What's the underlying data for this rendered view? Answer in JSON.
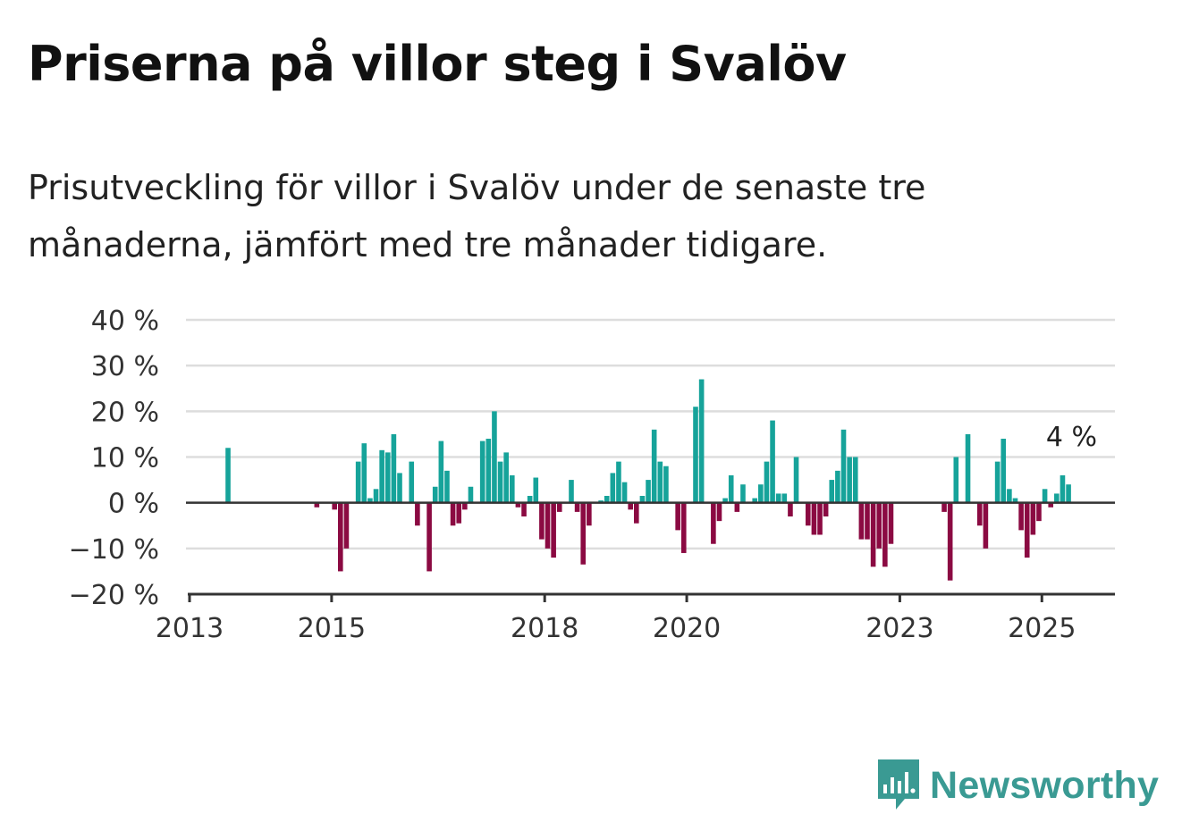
{
  "title": "Priserna på villor steg i Svalöv",
  "subtitle": "Prisutveckling för villor i Svalöv under de senaste tre månaderna, jämfört med tre månader tidigare.",
  "brand": {
    "name": "Newsworthy",
    "color": "#3a9a93"
  },
  "colors": {
    "positive": "#16a39a",
    "negative": "#8b0a42",
    "grid": "#dddddd",
    "axis": "#333333"
  },
  "chart_data": {
    "type": "bar",
    "title": "",
    "xlabel": "",
    "ylabel": "",
    "ylim": [
      -20,
      40
    ],
    "y_ticks": [
      {
        "value": 40,
        "label": "40 %"
      },
      {
        "value": 30,
        "label": "30 %"
      },
      {
        "value": 20,
        "label": "20 %"
      },
      {
        "value": 10,
        "label": "10 %"
      },
      {
        "value": 0,
        "label": "0 %"
      },
      {
        "value": -10,
        "label": "−10 %"
      },
      {
        "value": -20,
        "label": "−20 %"
      }
    ],
    "x_range": [
      "2013-01",
      "2026-01"
    ],
    "x_ticks": [
      {
        "date": "2013-01",
        "label": "2013"
      },
      {
        "date": "2015-01",
        "label": "2015"
      },
      {
        "date": "2018-01",
        "label": "2018"
      },
      {
        "date": "2020-01",
        "label": "2020"
      },
      {
        "date": "2023-01",
        "label": "2023"
      },
      {
        "date": "2025-01",
        "label": "2025"
      }
    ],
    "grid": true,
    "legend": "none",
    "annotation": {
      "date": "2025-05",
      "label": "4 %"
    },
    "series": [
      {
        "points": [
          {
            "date": "2013-07",
            "value": 12
          },
          {
            "date": "2014-10",
            "value": -1
          },
          {
            "date": "2015-01",
            "value": -1.5
          },
          {
            "date": "2015-02",
            "value": -15
          },
          {
            "date": "2015-03",
            "value": -10
          },
          {
            "date": "2015-05",
            "value": 9
          },
          {
            "date": "2015-06",
            "value": 13
          },
          {
            "date": "2015-07",
            "value": 1
          },
          {
            "date": "2015-08",
            "value": 3
          },
          {
            "date": "2015-09",
            "value": 11.5
          },
          {
            "date": "2015-10",
            "value": 11
          },
          {
            "date": "2015-11",
            "value": 15
          },
          {
            "date": "2015-12",
            "value": 6.5
          },
          {
            "date": "2016-02",
            "value": 9
          },
          {
            "date": "2016-03",
            "value": -5
          },
          {
            "date": "2016-05",
            "value": -15
          },
          {
            "date": "2016-06",
            "value": 3.5
          },
          {
            "date": "2016-07",
            "value": 13.5
          },
          {
            "date": "2016-08",
            "value": 7
          },
          {
            "date": "2016-09",
            "value": -5
          },
          {
            "date": "2016-10",
            "value": -4.5
          },
          {
            "date": "2016-11",
            "value": -1.5
          },
          {
            "date": "2016-12",
            "value": 3.5
          },
          {
            "date": "2017-02",
            "value": 13.5
          },
          {
            "date": "2017-03",
            "value": 14
          },
          {
            "date": "2017-04",
            "value": 20
          },
          {
            "date": "2017-05",
            "value": 9
          },
          {
            "date": "2017-06",
            "value": 11
          },
          {
            "date": "2017-07",
            "value": 6
          },
          {
            "date": "2017-08",
            "value": -1
          },
          {
            "date": "2017-09",
            "value": -3
          },
          {
            "date": "2017-10",
            "value": 1.5
          },
          {
            "date": "2017-11",
            "value": 5.5
          },
          {
            "date": "2017-12",
            "value": -8
          },
          {
            "date": "2018-01",
            "value": -10
          },
          {
            "date": "2018-02",
            "value": -12
          },
          {
            "date": "2018-03",
            "value": -2
          },
          {
            "date": "2018-05",
            "value": 5
          },
          {
            "date": "2018-06",
            "value": -2
          },
          {
            "date": "2018-07",
            "value": -13.5
          },
          {
            "date": "2018-08",
            "value": -5
          },
          {
            "date": "2018-10",
            "value": 0.5
          },
          {
            "date": "2018-11",
            "value": 1.5
          },
          {
            "date": "2018-12",
            "value": 6.5
          },
          {
            "date": "2019-01",
            "value": 9
          },
          {
            "date": "2019-02",
            "value": 4.5
          },
          {
            "date": "2019-03",
            "value": -1.5
          },
          {
            "date": "2019-04",
            "value": -4.5
          },
          {
            "date": "2019-05",
            "value": 1.5
          },
          {
            "date": "2019-06",
            "value": 5
          },
          {
            "date": "2019-07",
            "value": 16
          },
          {
            "date": "2019-08",
            "value": 9
          },
          {
            "date": "2019-09",
            "value": 8
          },
          {
            "date": "2019-11",
            "value": -6
          },
          {
            "date": "2019-12",
            "value": -11
          },
          {
            "date": "2020-02",
            "value": 21
          },
          {
            "date": "2020-03",
            "value": 27
          },
          {
            "date": "2020-05",
            "value": -9
          },
          {
            "date": "2020-06",
            "value": -4
          },
          {
            "date": "2020-07",
            "value": 1
          },
          {
            "date": "2020-08",
            "value": 6
          },
          {
            "date": "2020-09",
            "value": -2
          },
          {
            "date": "2020-10",
            "value": 4
          },
          {
            "date": "2020-12",
            "value": 1
          },
          {
            "date": "2021-01",
            "value": 4
          },
          {
            "date": "2021-02",
            "value": 9
          },
          {
            "date": "2021-03",
            "value": 18
          },
          {
            "date": "2021-04",
            "value": 2
          },
          {
            "date": "2021-05",
            "value": 2
          },
          {
            "date": "2021-06",
            "value": -3
          },
          {
            "date": "2021-07",
            "value": 10
          },
          {
            "date": "2021-09",
            "value": -5
          },
          {
            "date": "2021-10",
            "value": -7
          },
          {
            "date": "2021-11",
            "value": -7
          },
          {
            "date": "2021-12",
            "value": -3
          },
          {
            "date": "2022-01",
            "value": 5
          },
          {
            "date": "2022-02",
            "value": 7
          },
          {
            "date": "2022-03",
            "value": 16
          },
          {
            "date": "2022-04",
            "value": 10
          },
          {
            "date": "2022-05",
            "value": 10
          },
          {
            "date": "2022-06",
            "value": -8
          },
          {
            "date": "2022-07",
            "value": -8
          },
          {
            "date": "2022-08",
            "value": -14
          },
          {
            "date": "2022-09",
            "value": -10
          },
          {
            "date": "2022-10",
            "value": -14
          },
          {
            "date": "2022-11",
            "value": -9
          },
          {
            "date": "2023-08",
            "value": -2
          },
          {
            "date": "2023-09",
            "value": -17
          },
          {
            "date": "2023-10",
            "value": 10
          },
          {
            "date": "2023-12",
            "value": 15
          },
          {
            "date": "2024-02",
            "value": -5
          },
          {
            "date": "2024-03",
            "value": -10
          },
          {
            "date": "2024-05",
            "value": 9
          },
          {
            "date": "2024-06",
            "value": 14
          },
          {
            "date": "2024-07",
            "value": 3
          },
          {
            "date": "2024-08",
            "value": 1
          },
          {
            "date": "2024-09",
            "value": -6
          },
          {
            "date": "2024-10",
            "value": -12
          },
          {
            "date": "2024-11",
            "value": -7
          },
          {
            "date": "2024-12",
            "value": -4
          },
          {
            "date": "2025-01",
            "value": 3
          },
          {
            "date": "2025-02",
            "value": -1
          },
          {
            "date": "2025-03",
            "value": 2
          },
          {
            "date": "2025-04",
            "value": 6
          },
          {
            "date": "2025-05",
            "value": 4
          }
        ]
      }
    ]
  }
}
